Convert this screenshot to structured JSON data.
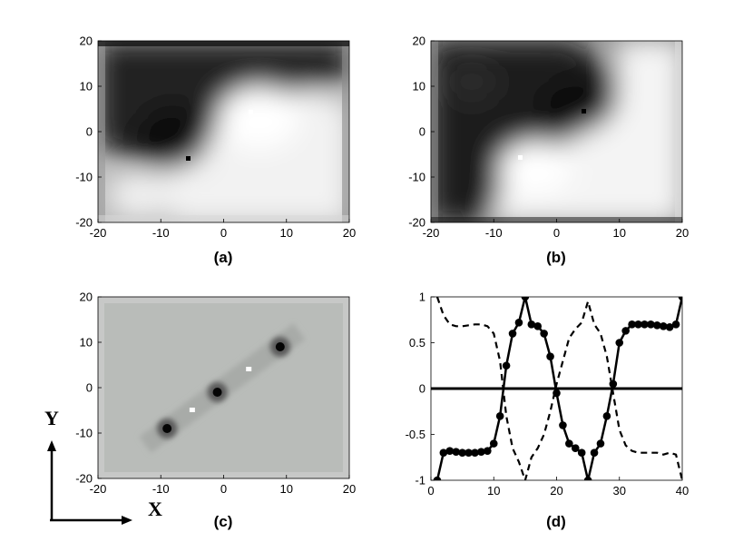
{
  "chart_data": [
    {
      "type": "heatmap",
      "caption": "(a)",
      "colormap": "grayscale",
      "xlim": [
        -20,
        20
      ],
      "ylim": [
        -20,
        20
      ],
      "xticks": [
        -20,
        -10,
        0,
        10,
        20
      ],
      "yticks": [
        20,
        10,
        0,
        -10,
        -20
      ],
      "description_values": {
        "dark_region": "upper-left (y > about -8, left of diagonal)",
        "light_region": "lower-right",
        "dark_center": [
          -5,
          -5
        ],
        "bright_spot": [
          5,
          5
        ]
      }
    },
    {
      "type": "heatmap",
      "caption": "(b)",
      "colormap": "grayscale",
      "xlim": [
        -20,
        20
      ],
      "ylim": [
        -20,
        20
      ],
      "xticks": [
        -20,
        -10,
        0,
        10,
        20
      ],
      "yticks": [
        20,
        10,
        0,
        -10,
        -20
      ],
      "description_values": {
        "dark_region": "left and top-center",
        "light_region": "right and lower-right",
        "dark_center": [
          5,
          5
        ],
        "bright_spot": [
          -5,
          -5
        ]
      }
    },
    {
      "type": "heatmap",
      "caption": "(c)",
      "colormap": "grayscale",
      "xlim": [
        -20,
        20
      ],
      "ylim": [
        -20,
        20
      ],
      "xticks": [
        -20,
        -10,
        0,
        10,
        20
      ],
      "yticks": [
        20,
        10,
        0,
        -10,
        -20
      ],
      "dark_spots": [
        [
          -9,
          -9
        ],
        [
          -1,
          -1
        ],
        [
          9,
          9
        ]
      ],
      "bright_spots": [
        [
          -5,
          -5
        ],
        [
          4,
          4
        ]
      ]
    },
    {
      "type": "line",
      "caption": "(d)",
      "xlim": [
        0,
        40
      ],
      "ylim": [
        -1,
        1
      ],
      "xticks": [
        0,
        10,
        20,
        30,
        40
      ],
      "yticks": [
        1,
        0.5,
        0,
        -0.5,
        -1
      ],
      "series": [
        {
          "style": "solid-markers",
          "x": [
            1,
            2,
            3,
            4,
            5,
            6,
            7,
            8,
            9,
            10,
            11,
            12,
            13,
            14,
            15,
            16,
            17,
            18,
            19,
            20,
            21,
            22,
            23,
            24,
            25,
            26,
            27,
            28,
            29,
            30,
            31,
            32,
            33,
            34,
            35,
            36,
            37,
            38,
            39,
            40
          ],
          "y": [
            -1,
            -0.7,
            -0.68,
            -0.69,
            -0.7,
            -0.7,
            -0.7,
            -0.69,
            -0.68,
            -0.6,
            -0.3,
            0.25,
            0.6,
            0.72,
            1,
            0.7,
            0.68,
            0.6,
            0.35,
            -0.05,
            -0.4,
            -0.6,
            -0.65,
            -0.7,
            -1,
            -0.7,
            -0.6,
            -0.3,
            0.05,
            0.5,
            0.63,
            0.7,
            0.7,
            0.7,
            0.7,
            0.69,
            0.68,
            0.67,
            0.7,
            1
          ]
        },
        {
          "style": "dashed",
          "x": [
            1,
            2,
            3,
            4,
            5,
            6,
            7,
            8,
            9,
            10,
            11,
            12,
            13,
            14,
            15,
            16,
            17,
            18,
            19,
            20,
            21,
            22,
            23,
            24,
            25,
            26,
            27,
            28,
            29,
            30,
            31,
            32,
            33,
            34,
            35,
            36,
            37,
            38,
            39,
            40
          ],
          "y": [
            1,
            0.8,
            0.7,
            0.68,
            0.68,
            0.69,
            0.7,
            0.7,
            0.68,
            0.6,
            0.3,
            -0.3,
            -0.65,
            -0.8,
            -1,
            -0.75,
            -0.65,
            -0.5,
            -0.25,
            0.05,
            0.3,
            0.55,
            0.65,
            0.72,
            0.95,
            0.7,
            0.6,
            0.35,
            -0.05,
            -0.45,
            -0.62,
            -0.68,
            -0.7,
            -0.7,
            -0.7,
            -0.7,
            -0.72,
            -0.7,
            -0.72,
            -1
          ]
        },
        {
          "style": "solid-thick",
          "x": [
            0,
            40
          ],
          "y": [
            0,
            0
          ]
        }
      ]
    }
  ],
  "axis_labels": {
    "y_letter": "Y",
    "x_letter": "X"
  }
}
